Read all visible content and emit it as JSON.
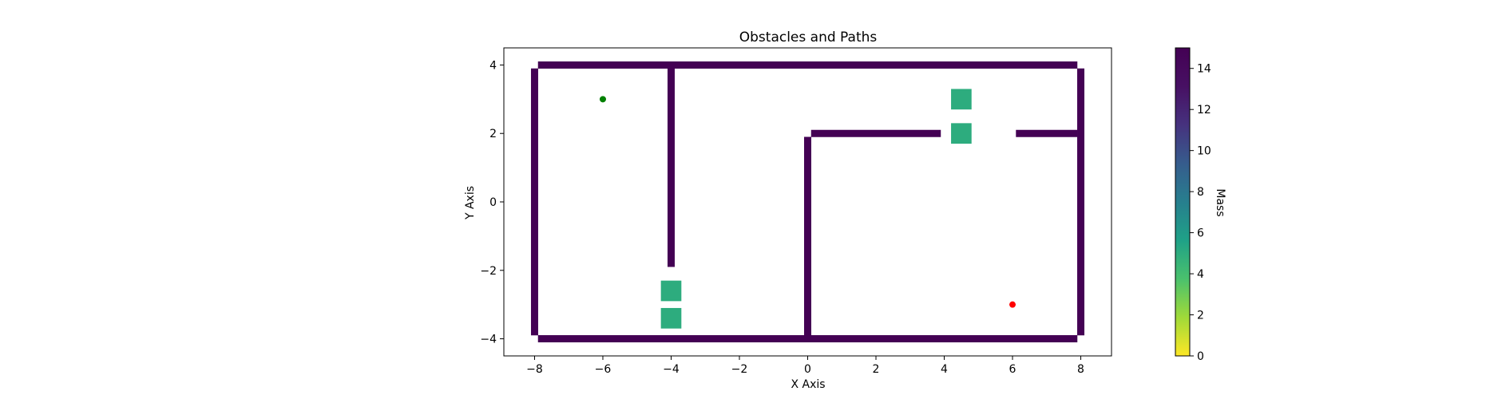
{
  "chart_data": {
    "type": "scatter",
    "title": "Obstacles and Paths",
    "xlabel": "X Axis",
    "ylabel": "Y Axis",
    "xlim": [
      -8.9,
      8.9
    ],
    "ylim": [
      -4.5,
      4.5
    ],
    "xticks": [
      -8,
      -6,
      -4,
      -2,
      0,
      2,
      4,
      6,
      8
    ],
    "yticks": [
      -4,
      -2,
      0,
      2,
      4
    ],
    "grid": false,
    "obstacles": [
      {
        "kind": "wall",
        "x": [
          -7.9,
          7.9
        ],
        "y": [
          4,
          4
        ],
        "mass": 15
      },
      {
        "kind": "wall",
        "x": [
          -7.9,
          7.9
        ],
        "y": [
          -4,
          -4
        ],
        "mass": 15
      },
      {
        "kind": "wall",
        "x": [
          -8,
          -8
        ],
        "y": [
          -3.9,
          3.9
        ],
        "mass": 15
      },
      {
        "kind": "wall",
        "x": [
          8,
          8
        ],
        "y": [
          -3.9,
          3.9
        ],
        "mass": 15
      },
      {
        "kind": "wall",
        "x": [
          -4,
          -4
        ],
        "y": [
          -1.9,
          3.9
        ],
        "mass": 15
      },
      {
        "kind": "wall",
        "x": [
          0,
          0
        ],
        "y": [
          -3.9,
          1.9
        ],
        "mass": 15
      },
      {
        "kind": "wall",
        "x": [
          0.1,
          3.9
        ],
        "y": [
          2,
          2
        ],
        "mass": 15
      },
      {
        "kind": "wall",
        "x": [
          6.1,
          7.9
        ],
        "y": [
          2,
          2
        ],
        "mass": 15
      },
      {
        "kind": "block",
        "x": [
          4.5,
          4.5
        ],
        "y": [
          3,
          3
        ],
        "size": 0.6,
        "mass": 5
      },
      {
        "kind": "block",
        "x": [
          4.5,
          4.5
        ],
        "y": [
          2,
          2
        ],
        "size": 0.6,
        "mass": 5
      },
      {
        "kind": "block",
        "x": [
          -4,
          -4
        ],
        "y": [
          -2.6,
          -2.6
        ],
        "size": 0.6,
        "mass": 5
      },
      {
        "kind": "block",
        "x": [
          -4,
          -4
        ],
        "y": [
          -3.4,
          -3.4
        ],
        "size": 0.6,
        "mass": 5
      }
    ],
    "points": [
      {
        "x": -6,
        "y": 3,
        "color": "#008000"
      },
      {
        "x": 6,
        "y": -3,
        "color": "#ff0000"
      }
    ],
    "colorbar": {
      "label": "Mass",
      "min": 0,
      "max": 15,
      "ticks": [
        0,
        2,
        4,
        6,
        8,
        10,
        12,
        14
      ],
      "colormap": "viridis_r"
    }
  }
}
